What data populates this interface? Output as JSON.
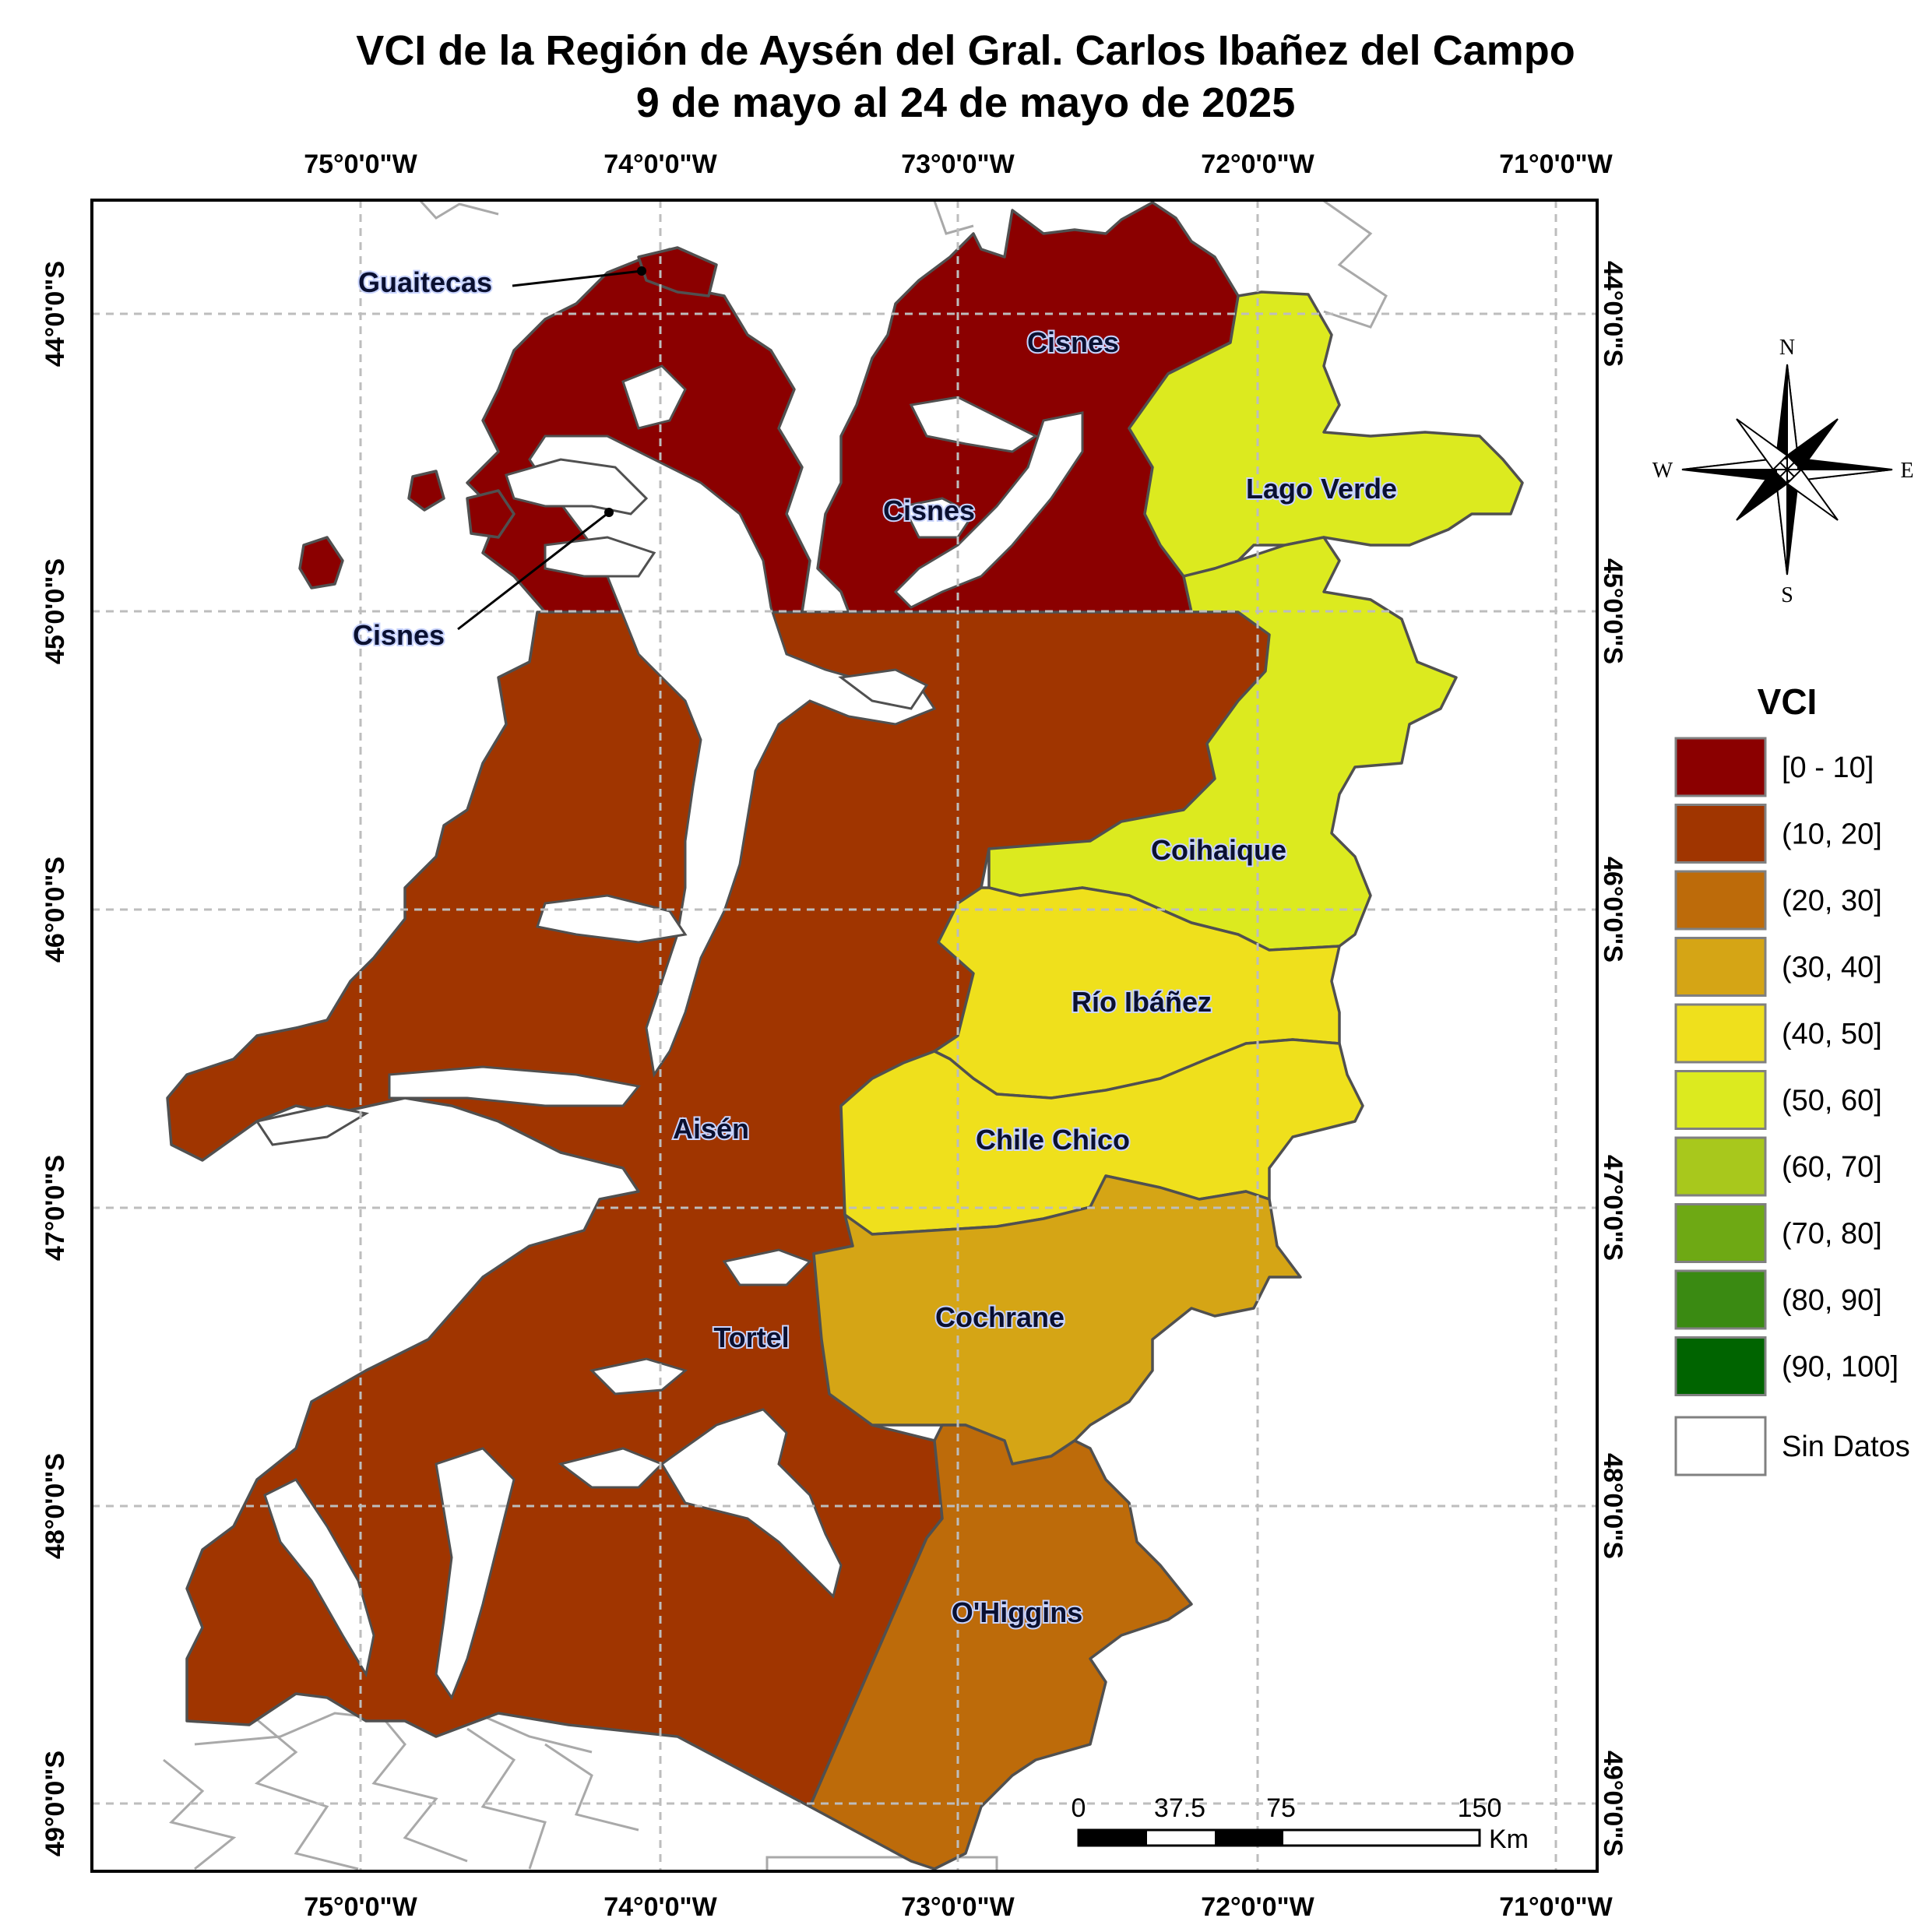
{
  "title": {
    "line1": "VCI de la Región de Aysén del Gral. Carlos Ibañez del Campo",
    "line2": "9 de mayo al 24 de mayo de 2025"
  },
  "longitude_labels": [
    "75°0'0\"W",
    "74°0'0\"W",
    "73°0'0\"W",
    "72°0'0\"W",
    "71°0'0\"W"
  ],
  "latitude_labels": [
    "44°0'0\"S",
    "45°0'0\"S",
    "46°0'0\"S",
    "47°0'0\"S",
    "48°0'0\"S",
    "49°0'0\"S"
  ],
  "communes": [
    {
      "name": "Guaitecas",
      "class": "[0 - 10]",
      "color": "#8b0000"
    },
    {
      "name": "Cisnes",
      "class": "[0 - 10]",
      "color": "#8b0000"
    },
    {
      "name": "Lago Verde",
      "class": "(50, 60]",
      "color": "#dcea1f"
    },
    {
      "name": "Coihaique",
      "class": "(50, 60]",
      "color": "#dcea1f"
    },
    {
      "name": "Aisén",
      "class": "(10, 20]",
      "color": "#a03500"
    },
    {
      "name": "Río Ibáñez",
      "class": "(40, 50]",
      "color": "#efe01c"
    },
    {
      "name": "Chile Chico",
      "class": "(40, 50]",
      "color": "#efe01c"
    },
    {
      "name": "Cochrane",
      "class": "(30, 40]",
      "color": "#d5a515"
    },
    {
      "name": "Tortel",
      "class": "(10, 20]",
      "color": "#a03500"
    },
    {
      "name": "O'Higgins",
      "class": "(20, 30]",
      "color": "#bd6b0a"
    }
  ],
  "map_labels": {
    "guaitecas": "Guaitecas",
    "cisnes_north": "Cisnes",
    "cisnes_center": "Cisnes",
    "cisnes_callout": "Cisnes",
    "lago_verde": "Lago Verde",
    "coihaique": "Coihaique",
    "rio_ibanez": "Río Ibáñez",
    "aisen": "Aisén",
    "chile_chico": "Chile Chico",
    "cochrane": "Cochrane",
    "tortel": "Tortel",
    "ohiggins": "O'Higgins"
  },
  "legend": {
    "title": "VCI",
    "items": [
      {
        "label": "[0 - 10]",
        "color": "#8b0000"
      },
      {
        "label": "(10, 20]",
        "color": "#a03500"
      },
      {
        "label": "(20, 30]",
        "color": "#bd6b0a"
      },
      {
        "label": "(30, 40]",
        "color": "#d5a515"
      },
      {
        "label": "(40, 50]",
        "color": "#efe01c"
      },
      {
        "label": "(50, 60]",
        "color": "#dcea1f"
      },
      {
        "label": "(60, 70]",
        "color": "#a8c81c"
      },
      {
        "label": "(70, 80]",
        "color": "#6ea914"
      },
      {
        "label": "(80, 90]",
        "color": "#3a8a12"
      },
      {
        "label": "(90, 100]",
        "color": "#006400"
      }
    ],
    "no_data": {
      "label": "Sin Datos",
      "color": "#ffffff"
    }
  },
  "compass": {
    "north": "N",
    "south": "S",
    "east": "E",
    "west": "W"
  },
  "scale_bar": {
    "ticks": [
      "0",
      "37.5",
      "75",
      "150"
    ],
    "unit": "Km"
  }
}
